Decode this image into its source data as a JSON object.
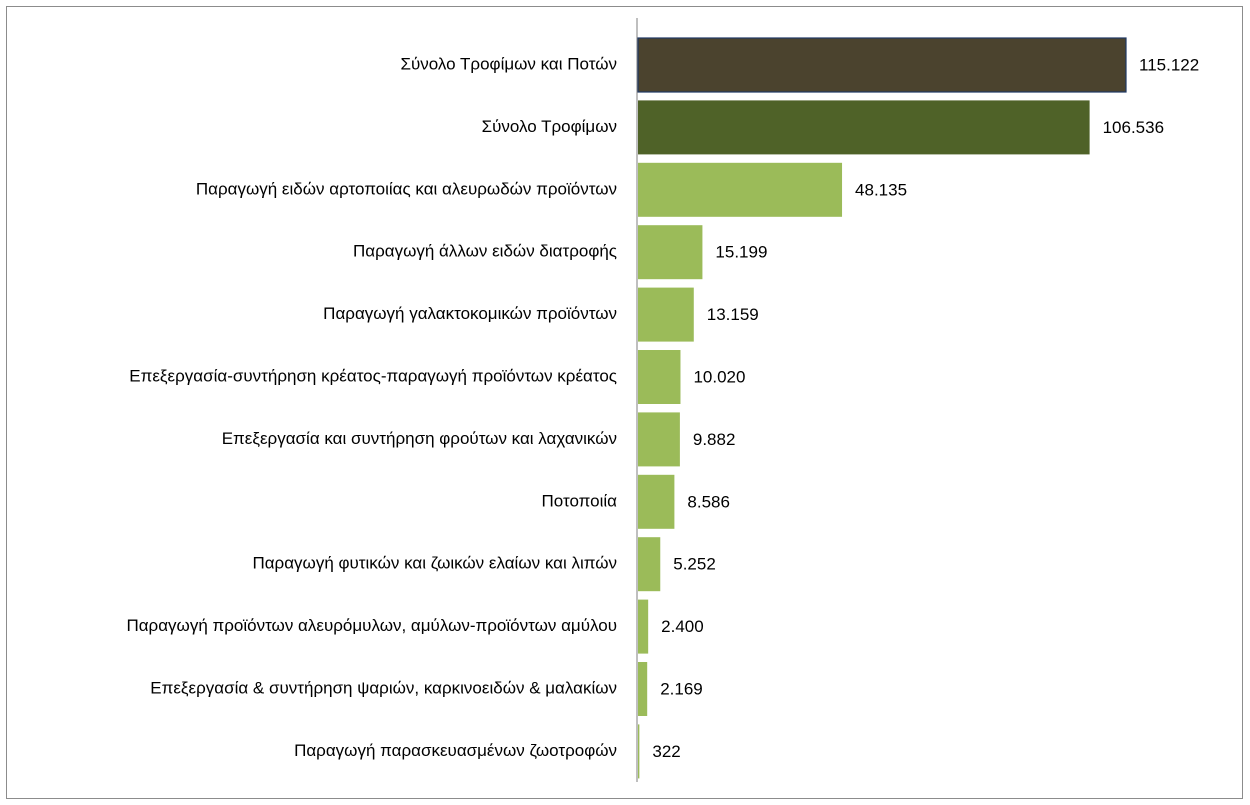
{
  "chart_data": {
    "type": "bar",
    "orientation": "horizontal",
    "title": "",
    "xlabel": "",
    "ylabel": "",
    "categories": [
      "Σύνολο Τροφίμων και Ποτών",
      "Σύνολο Τροφίμων",
      "Παραγωγή ειδών αρτοποιίας και αλευρωδών προϊόντων",
      "Παραγωγή άλλων ειδών διατροφής",
      "Παραγωγή γαλακτοκομικών προϊόντων",
      "Επεξεργασία-συντήρηση κρέατος-παραγωγή προϊόντων κρέατος",
      "Επεξεργασία και συντήρηση φρούτων και λαχανικών",
      "Ποτοποιία",
      "Παραγωγή φυτικών και ζωικών ελαίων και λιπών",
      "Παραγωγή προϊόντων αλευρόμυλων, αμύλων-προϊόντων αμύλου",
      "Επεξεργασία & συντήρηση ψαριών, καρκινοειδών & μαλακίων",
      "Παραγωγή παρασκευασμένων ζωοτροφών"
    ],
    "values": [
      115122,
      106536,
      48135,
      15199,
      13159,
      10020,
      9882,
      8586,
      5252,
      2400,
      2169,
      322
    ],
    "value_labels": [
      "115.122",
      "106.536",
      "48.135",
      "15.199",
      "13.159",
      "10.020",
      "9.882",
      "8.586",
      "5.252",
      "2.400",
      "2.169",
      "322"
    ],
    "bar_colors": [
      "#4b432e",
      "#4f6228",
      "#9bbb59",
      "#9bbb59",
      "#9bbb59",
      "#9bbb59",
      "#9bbb59",
      "#9bbb59",
      "#9bbb59",
      "#9bbb59",
      "#9bbb59",
      "#9bbb59"
    ],
    "highlight_border_color": "#1f3864",
    "axis_color": "#7f7f7f",
    "xlim": [
      0,
      115122
    ],
    "grid": false,
    "legend": "none"
  }
}
